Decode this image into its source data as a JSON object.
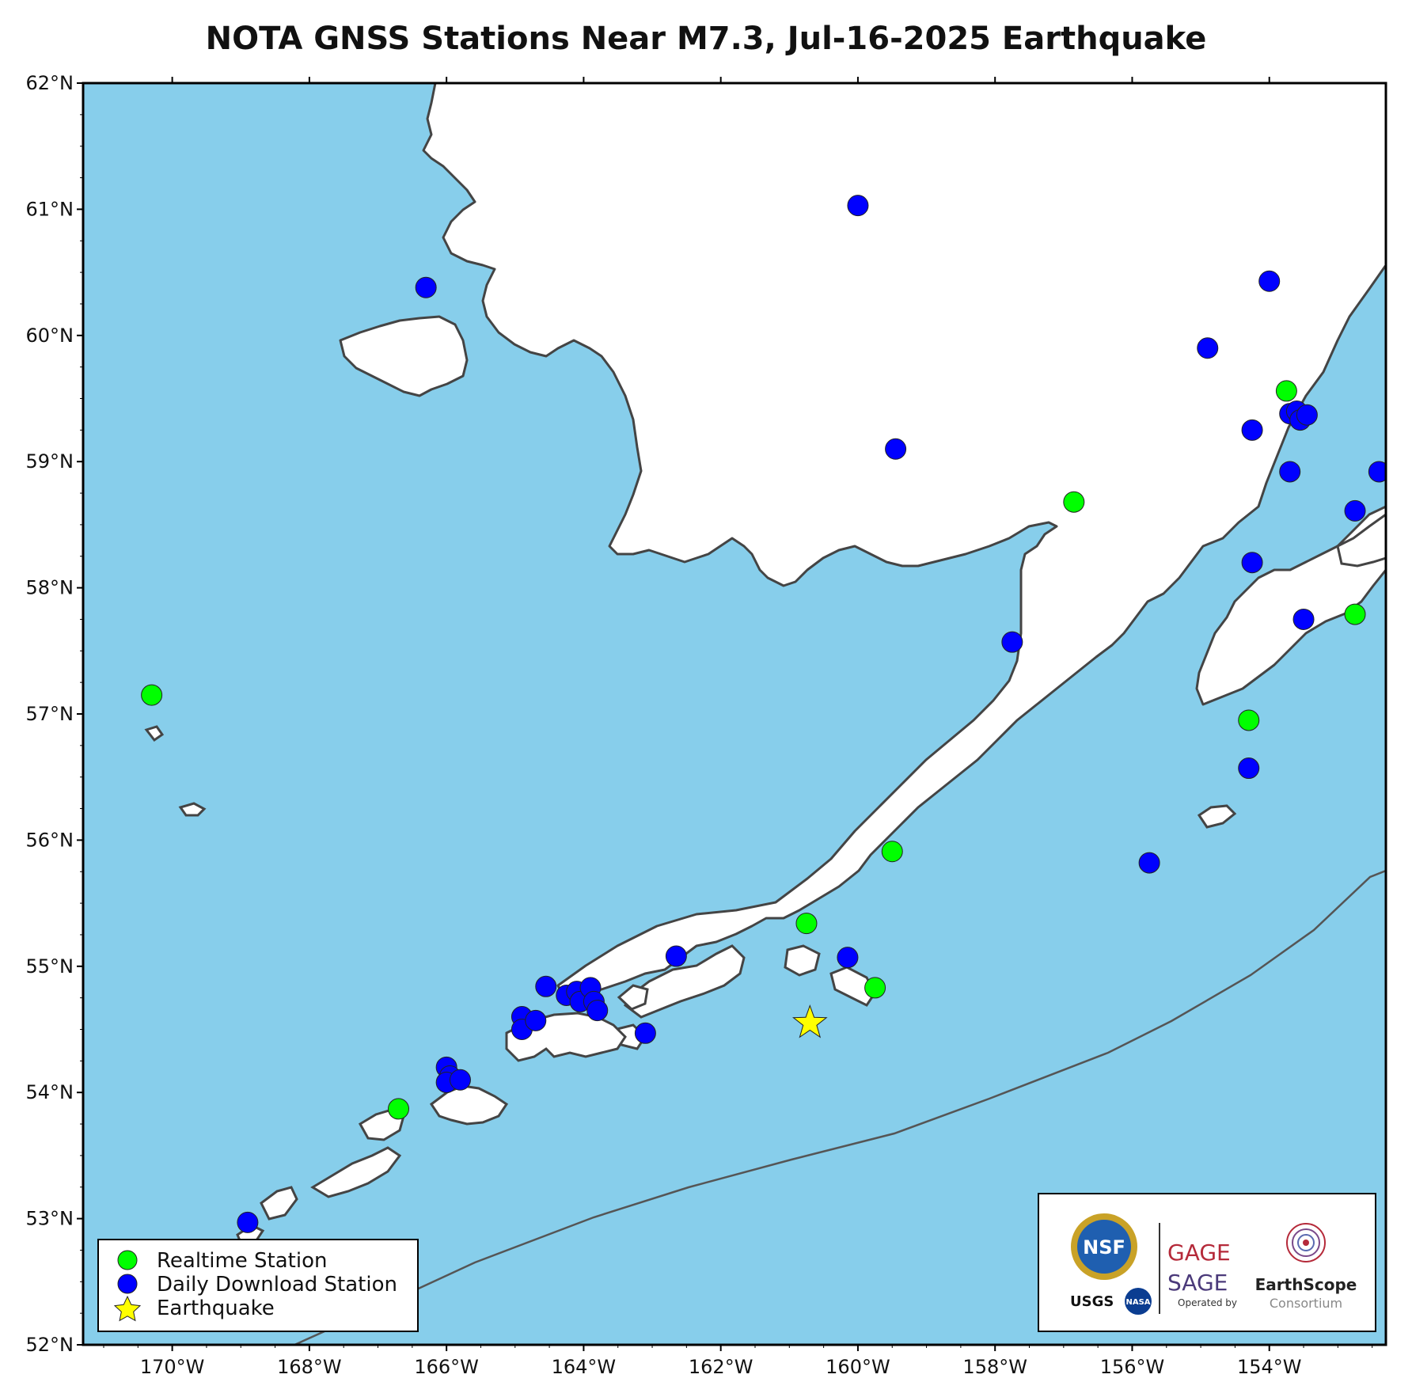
{
  "title": "NOTA GNSS Stations Near M7.3, Jul-16-2025 Earthquake",
  "colors": {
    "ocean": "#87ceeb",
    "land": "#ffffff",
    "coast": "#444444",
    "realtime": "#00ff00",
    "daily": "#0000ff",
    "earthquake": "#ffff00",
    "trench": "#555555"
  },
  "map": {
    "lon_range": [
      -171.3,
      -152.3
    ],
    "lat_range": [
      52,
      62
    ]
  },
  "axes": {
    "lat_ticks": [
      {
        "value": 62,
        "label": "62°N"
      },
      {
        "value": 61,
        "label": "61°N"
      },
      {
        "value": 60,
        "label": "60°N"
      },
      {
        "value": 59,
        "label": "59°N"
      },
      {
        "value": 58,
        "label": "58°N"
      },
      {
        "value": 57,
        "label": "57°N"
      },
      {
        "value": 56,
        "label": "56°N"
      },
      {
        "value": 55,
        "label": "55°N"
      },
      {
        "value": 54,
        "label": "54°N"
      },
      {
        "value": 53,
        "label": "53°N"
      },
      {
        "value": 52,
        "label": "52°N"
      }
    ],
    "lon_ticks": [
      {
        "value": -170,
        "label": "170°W"
      },
      {
        "value": -168,
        "label": "168°W"
      },
      {
        "value": -166,
        "label": "166°W"
      },
      {
        "value": -164,
        "label": "164°W"
      },
      {
        "value": -162,
        "label": "162°W"
      },
      {
        "value": -160,
        "label": "160°W"
      },
      {
        "value": -158,
        "label": "158°W"
      },
      {
        "value": -156,
        "label": "156°W"
      },
      {
        "value": -154,
        "label": "154°W"
      }
    ]
  },
  "earthquake": {
    "lon": -160.7,
    "lat": 54.55
  },
  "realtime_stations": [
    {
      "lon": -170.3,
      "lat": 57.15
    },
    {
      "lon": -166.7,
      "lat": 53.87
    },
    {
      "lon": -160.75,
      "lat": 55.34
    },
    {
      "lon": -159.75,
      "lat": 54.83
    },
    {
      "lon": -159.5,
      "lat": 55.91
    },
    {
      "lon": -156.85,
      "lat": 58.68
    },
    {
      "lon": -153.75,
      "lat": 59.56
    },
    {
      "lon": -152.75,
      "lat": 57.79
    },
    {
      "lon": -154.3,
      "lat": 56.95
    }
  ],
  "daily_stations": [
    {
      "lon": -160.0,
      "lat": 61.03
    },
    {
      "lon": -166.3,
      "lat": 60.38
    },
    {
      "lon": -154.0,
      "lat": 60.43
    },
    {
      "lon": -154.9,
      "lat": 59.9
    },
    {
      "lon": -153.7,
      "lat": 59.38
    },
    {
      "lon": -153.6,
      "lat": 59.4
    },
    {
      "lon": -153.55,
      "lat": 59.33
    },
    {
      "lon": -153.45,
      "lat": 59.37
    },
    {
      "lon": -154.25,
      "lat": 59.25
    },
    {
      "lon": -153.7,
      "lat": 58.92
    },
    {
      "lon": -152.4,
      "lat": 58.92
    },
    {
      "lon": -152.75,
      "lat": 58.61
    },
    {
      "lon": -154.25,
      "lat": 58.2
    },
    {
      "lon": -153.5,
      "lat": 57.75
    },
    {
      "lon": -157.75,
      "lat": 57.57
    },
    {
      "lon": -154.3,
      "lat": 56.57
    },
    {
      "lon": -155.75,
      "lat": 55.82
    },
    {
      "lon": -159.45,
      "lat": 59.1
    },
    {
      "lon": -160.15,
      "lat": 55.07
    },
    {
      "lon": -162.65,
      "lat": 55.08
    },
    {
      "lon": -163.1,
      "lat": 54.47
    },
    {
      "lon": -164.55,
      "lat": 54.84
    },
    {
      "lon": -164.25,
      "lat": 54.77
    },
    {
      "lon": -164.1,
      "lat": 54.8
    },
    {
      "lon": -164.05,
      "lat": 54.72
    },
    {
      "lon": -163.9,
      "lat": 54.83
    },
    {
      "lon": -163.85,
      "lat": 54.72
    },
    {
      "lon": -163.8,
      "lat": 54.65
    },
    {
      "lon": -164.9,
      "lat": 54.6
    },
    {
      "lon": -164.9,
      "lat": 54.5
    },
    {
      "lon": -164.7,
      "lat": 54.57
    },
    {
      "lon": -166.0,
      "lat": 54.2
    },
    {
      "lon": -165.95,
      "lat": 54.13
    },
    {
      "lon": -166.0,
      "lat": 54.08
    },
    {
      "lon": -165.8,
      "lat": 54.1
    },
    {
      "lon": -168.9,
      "lat": 52.97
    }
  ],
  "legend": {
    "realtime_label": "Realtime Station",
    "daily_label": "Daily Download Station",
    "earthquake_label": "Earthquake"
  },
  "logos": {
    "nsf": "NSF",
    "usgs": "USGS",
    "nasa": "NASA",
    "gage": "GAGE",
    "sage": "SAGE",
    "operated_by": "Operated by",
    "earthscope": "EarthScope",
    "consortium": "Consortium"
  }
}
